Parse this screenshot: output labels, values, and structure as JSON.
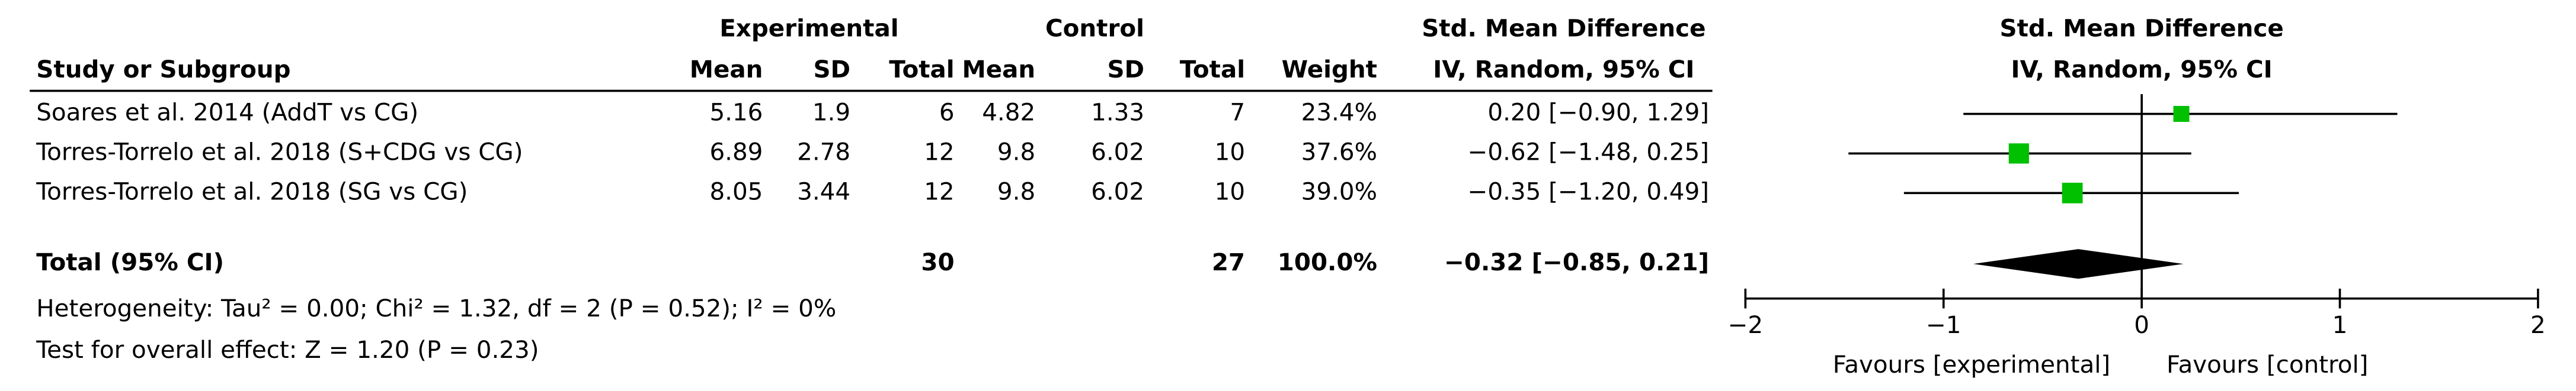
{
  "chart_data": {
    "type": "forest",
    "header": {
      "group1": "Experimental",
      "group2": "Control",
      "effect_title": "Std. Mean Difference",
      "effect_method": "IV, Random, 95% CI",
      "study_col": "Study or Subgroup",
      "columns": [
        "Mean",
        "SD",
        "Total",
        "Mean",
        "SD",
        "Total",
        "Weight"
      ]
    },
    "plot_title": "Std. Mean Difference",
    "plot_method": "IV, Random, 95% CI",
    "studies": [
      {
        "name": "Soares et al. 2014 (AddT vs CG)",
        "exp_mean": 5.16,
        "exp_sd": 1.9,
        "exp_total": 6,
        "ctl_mean": 4.82,
        "ctl_sd": 1.33,
        "ctl_total": 7,
        "weight": 23.4,
        "weight_label": "23.4%",
        "smd": 0.2,
        "ci_low": -0.9,
        "ci_high": 1.29,
        "ci_label": "0.20 [−0.90, 1.29]"
      },
      {
        "name": "Torres-Torrelo et al. 2018 (S+CDG vs CG)",
        "exp_mean": 6.89,
        "exp_sd": 2.78,
        "exp_total": 12,
        "ctl_mean": 9.8,
        "ctl_sd": 6.02,
        "ctl_total": 10,
        "weight": 37.6,
        "weight_label": "37.6%",
        "smd": -0.62,
        "ci_low": -1.48,
        "ci_high": 0.25,
        "ci_label": "−0.62 [−1.48, 0.25]"
      },
      {
        "name": "Torres-Torrelo et al. 2018 (SG vs CG)",
        "exp_mean": 8.05,
        "exp_sd": 3.44,
        "exp_total": 12,
        "ctl_mean": 9.8,
        "ctl_sd": 6.02,
        "ctl_total": 10,
        "weight": 39.0,
        "weight_label": "39.0%",
        "smd": -0.35,
        "ci_low": -1.2,
        "ci_high": 0.49,
        "ci_label": "−0.35 [−1.20, 0.49]"
      }
    ],
    "total": {
      "name": "Total (95% CI)",
      "exp_total": 30,
      "ctl_total": 27,
      "weight": 100,
      "weight_label": "100.0%",
      "smd": -0.32,
      "ci_low": -0.85,
      "ci_high": 0.21,
      "ci_label": "−0.32 [−0.85, 0.21]"
    },
    "heterogeneity": "Heterogeneity: Tau² = 0.00; Chi² = 1.32, df = 2 (P = 0.52); I² = 0%",
    "overall_effect": "Test for overall effect: Z = 1.20 (P = 0.23)",
    "xlim": [
      -2,
      2
    ],
    "xticks": [
      {
        "value": -2,
        "label": "−2"
      },
      {
        "value": -1,
        "label": "−1"
      },
      0,
      1,
      2
    ],
    "favours_left": "Favours [experimental]",
    "favours_right": "Favours [control]",
    "color": "#00c000",
    "diamond_color": "#000000"
  }
}
